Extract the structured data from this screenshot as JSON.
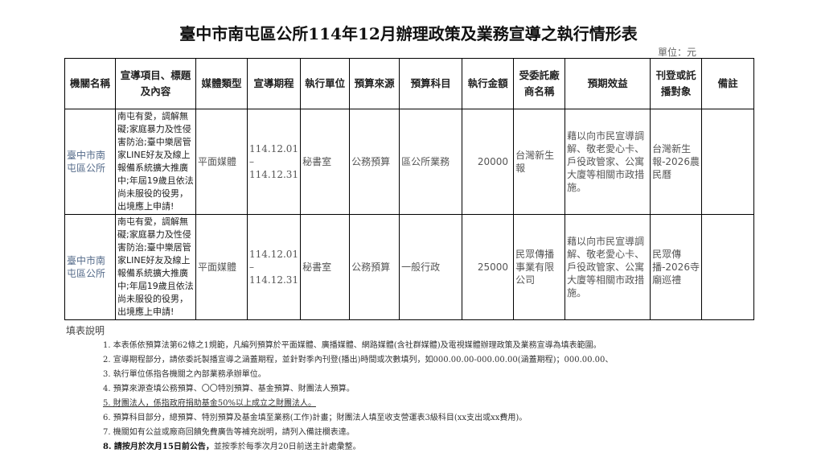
{
  "title": "臺中市南屯區公所114年12月辦理政策及業務宣導之執行情形表",
  "unit": "單位：元",
  "headers": [
    "機關名稱",
    "宣導項目、標題及內容",
    "媒體類型",
    "宣導期程",
    "執行單位",
    "預算來源",
    "預算科目",
    "執行金額",
    "受委託廠商名稱",
    "預期效益",
    "刊登或託播對象",
    "備註"
  ],
  "rows": [
    {
      "org": "臺中市南屯區公所",
      "content": "南屯有愛，調解無礙;家庭暴力及性侵害防治;臺中樂居管家LINE好友及線上報備系統擴大推廣中;年屆19歲且依法尚未服役的役男，出境應上申請!",
      "media": "平面媒體",
      "period": "114.12.01 – 114.12.31",
      "unit": "秘書室",
      "source": "公務預算",
      "subject": "區公所業務",
      "amount": "20000",
      "vendor": "台灣新生報",
      "benefit": "藉以向市民宣導調解、敬老愛心卡、戶役政管家、公寓大廈等相關市政措施。",
      "target": "台灣新生報-2026農民曆",
      "note": ""
    },
    {
      "org": "臺中市南屯區公所",
      "content": "南屯有愛，調解無礙;家庭暴力及性侵害防治;臺中樂居管家LINE好友及線上報備系統擴大推廣中;年屆19歲且依法尚未服役的役男，出境應上申請!",
      "media": "平面媒體",
      "period": "114.12.01 – 114.12.31",
      "unit": "秘書室",
      "source": "公務預算",
      "subject": "一般行政",
      "amount": "25000",
      "vendor": "民眾傳播事業有限公司",
      "benefit": "藉以向市民宣導調解、敬老愛心卡、戶役政管家、公寓大廈等相關市政措施。",
      "target": "民眾傳播-2026寺廟巡禮",
      "note": ""
    }
  ],
  "notes_title": "填表說明",
  "notes": [
    "1. 本表係依預算法第62條之1規範，凡編列預算於平面媒體、廣播媒體、網路媒體(含社群媒體)及電視媒體辦理政策及業務宣導為填表範圍。",
    "2. 宣導期程部分，請依委託製播宣導之涵蓋期程，並針對季內刊登(播出)時間或次數填列，如000.00.00-000.00.00(涵蓋期程)；000.00.00、",
    "3. 執行單位係指各機關之內部業務承辦單位。",
    "4. 預算來源查填公務預算、〇〇特別預算、基金預算、財團法人預算。",
    "5. 財團法人，係指政府捐助基金50%以上成立之財團法人。",
    "6. 預算科目部分，總預算、特別預算及基金填至業務(工作)計畫；財團法人填至收支營運表3級科目(xx支出或xx費用)。",
    "7. 機關如有公益或廠商回饋免費廣告等補充說明，請列入備註欄表達。"
  ],
  "note8_bold": "8. 請按月於次月15日前公告，",
  "note8_rest": "並按季於每季次月20日前送主計處彙整。"
}
